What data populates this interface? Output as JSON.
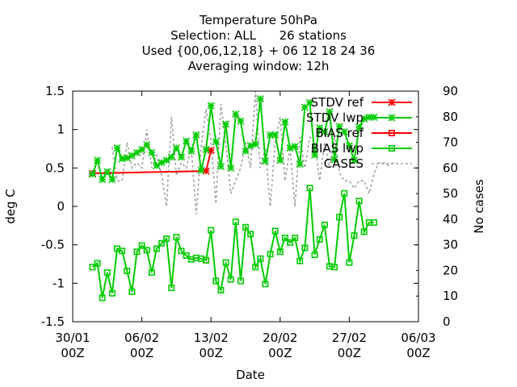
{
  "title_lines": [
    "Temperature 50hPa",
    "Selection: ALL      26 stations",
    "Used {00,06,12,18} + 06 12 18 24 36",
    "Averaging window: 12h"
  ],
  "chart_data": {
    "type": "line",
    "xlabel": "Date",
    "ylabel": "deg C",
    "y2label": "No cases",
    "xlim": [
      "2024-01-30 00Z",
      "2024-03-06 00Z"
    ],
    "ylim": [
      -1.5,
      1.5
    ],
    "y2lim": [
      0,
      90
    ],
    "x_ticks": [
      {
        "line1": "30/01",
        "line2": "00Z",
        "day": 0
      },
      {
        "line1": "06/02",
        "line2": "00Z",
        "day": 7
      },
      {
        "line1": "13/02",
        "line2": "00Z",
        "day": 14
      },
      {
        "line1": "20/02",
        "line2": "00Z",
        "day": 21
      },
      {
        "line1": "27/02",
        "line2": "00Z",
        "day": 28
      },
      {
        "line1": "06/03",
        "line2": "00Z",
        "day": 35
      }
    ],
    "y_ticks": [
      "-1.5",
      "-1",
      "-0.5",
      "0",
      "0.5",
      "1",
      "1.5"
    ],
    "y2_ticks": [
      "0",
      "10",
      "20",
      "30",
      "40",
      "50",
      "60",
      "70",
      "80",
      "90"
    ],
    "grid": false,
    "legend_position": "top-right",
    "colors": {
      "ref": "#ff0000",
      "lwp": "#00cc00",
      "cases": "#a0a0a0"
    },
    "legend": [
      "STDV ref",
      "STDV lwp",
      "BIAS ref",
      "BIAS lwp",
      "CASES"
    ],
    "series": [
      {
        "name": "STDV ref",
        "axis": "left",
        "marker": "star",
        "x_days": [
          2,
          13.5,
          14
        ],
        "y": [
          0.43,
          0.46,
          0.73
        ]
      },
      {
        "name": "STDV lwp",
        "axis": "left",
        "marker": "star",
        "x_days": [
          2,
          2.5,
          3,
          3.5,
          4,
          4.5,
          5,
          5.5,
          6,
          6.5,
          7,
          7.5,
          8,
          8.5,
          9,
          9.5,
          10,
          10.5,
          11,
          11.5,
          12,
          12.5,
          13,
          13.5,
          14,
          14.5,
          15,
          15.5,
          16,
          16.5,
          17,
          17.5,
          18,
          18.5,
          19,
          19.5,
          20,
          20.5,
          21,
          21.5,
          22,
          22.5,
          23,
          23.5,
          24,
          24.5,
          25,
          25.5,
          26,
          26.5,
          27,
          27.5,
          28,
          28.5,
          29,
          29.5,
          30,
          30.5
        ],
        "y": [
          0.42,
          0.6,
          0.35,
          0.45,
          0.35,
          0.76,
          0.62,
          0.63,
          0.66,
          0.7,
          0.74,
          0.8,
          0.7,
          0.53,
          0.57,
          0.6,
          0.64,
          0.76,
          0.64,
          0.85,
          0.72,
          0.93,
          0.47,
          0.74,
          1.31,
          0.84,
          0.52,
          1.07,
          0.5,
          1.2,
          1.11,
          0.72,
          0.79,
          0.81,
          1.4,
          0.59,
          0.93,
          0.93,
          0.6,
          1.1,
          0.76,
          0.78,
          0.55,
          1.29,
          1.35,
          0.67,
          1.02,
          0.97,
          1.23,
          0.61,
          1.04,
          0.97,
          0.79,
          0.6,
          1.03,
          1.14,
          1.16,
          1.16
        ]
      },
      {
        "name": "BIAS ref",
        "axis": "left",
        "marker": "square",
        "x_days": [
          13.5
        ],
        "y": [
          -0.7
        ]
      },
      {
        "name": "BIAS lwp",
        "axis": "left",
        "marker": "square",
        "x_days": [
          2,
          2.5,
          3,
          3.5,
          4,
          4.5,
          5,
          5.5,
          6,
          6.5,
          7,
          7.5,
          8,
          8.5,
          9,
          9.5,
          10,
          10.5,
          11,
          11.5,
          12,
          12.5,
          13,
          13.5,
          14,
          14.5,
          15,
          15.5,
          16,
          16.5,
          17,
          17.5,
          18,
          18.5,
          19,
          19.5,
          20,
          20.5,
          21,
          21.5,
          22,
          22.5,
          23,
          23.5,
          24,
          24.5,
          25,
          25.5,
          26,
          26.5,
          27,
          27.5,
          28,
          28.5,
          29,
          29.5,
          30,
          30.5
        ],
        "y": [
          -0.79,
          -0.74,
          -1.19,
          -0.86,
          -1.13,
          -0.55,
          -0.58,
          -0.84,
          -1.11,
          -0.59,
          -0.51,
          -0.57,
          -0.86,
          -0.55,
          -0.48,
          -0.42,
          -1.06,
          -0.4,
          -0.58,
          -0.64,
          -0.69,
          -0.67,
          -0.68,
          -0.7,
          -0.31,
          -0.97,
          -1.09,
          -0.73,
          -0.95,
          -0.2,
          -0.97,
          -0.27,
          -0.36,
          -0.79,
          -0.68,
          -1.01,
          -0.62,
          -0.32,
          -0.59,
          -0.41,
          -0.47,
          -0.41,
          -0.71,
          -0.54,
          0.24,
          -0.63,
          -0.43,
          -0.24,
          -0.78,
          -0.79,
          -0.14,
          0.17,
          -0.73,
          -0.38,
          0.07,
          -0.33,
          -0.21,
          -0.21
        ]
      },
      {
        "name": "CASES",
        "axis": "right",
        "marker": "none",
        "x_days": [
          4,
          4.5,
          5,
          5.5,
          6,
          6.5,
          7,
          7.5,
          8,
          8.5,
          9,
          9.5,
          10,
          10.5,
          11,
          11.5,
          12,
          12.5,
          13,
          13.5,
          14,
          14.5,
          15,
          15.5,
          16,
          16.5,
          17,
          17.5,
          18,
          18.5,
          19,
          19.5,
          20,
          20.5,
          21,
          21.5,
          22,
          22.5,
          23,
          23.5,
          24,
          24.5,
          25,
          25.5,
          26,
          26.5,
          27,
          27.5,
          28,
          28.5,
          29,
          29.5,
          30,
          30.5,
          31,
          31.5,
          32,
          32.5
        ],
        "y": [
          68,
          55,
          55,
          70,
          60,
          62,
          60,
          75,
          60,
          65,
          57,
          45,
          80,
          57,
          62,
          60,
          68,
          42,
          68,
          83,
          70,
          46,
          85,
          70,
          50,
          55,
          60,
          70,
          60,
          90,
          60,
          68,
          45,
          70,
          80,
          55,
          68,
          45,
          72,
          60,
          72,
          70,
          55,
          70,
          60,
          72,
          58,
          55,
          55,
          52,
          55,
          55,
          50,
          58,
          62,
          62,
          61,
          62
        ]
      }
    ]
  }
}
